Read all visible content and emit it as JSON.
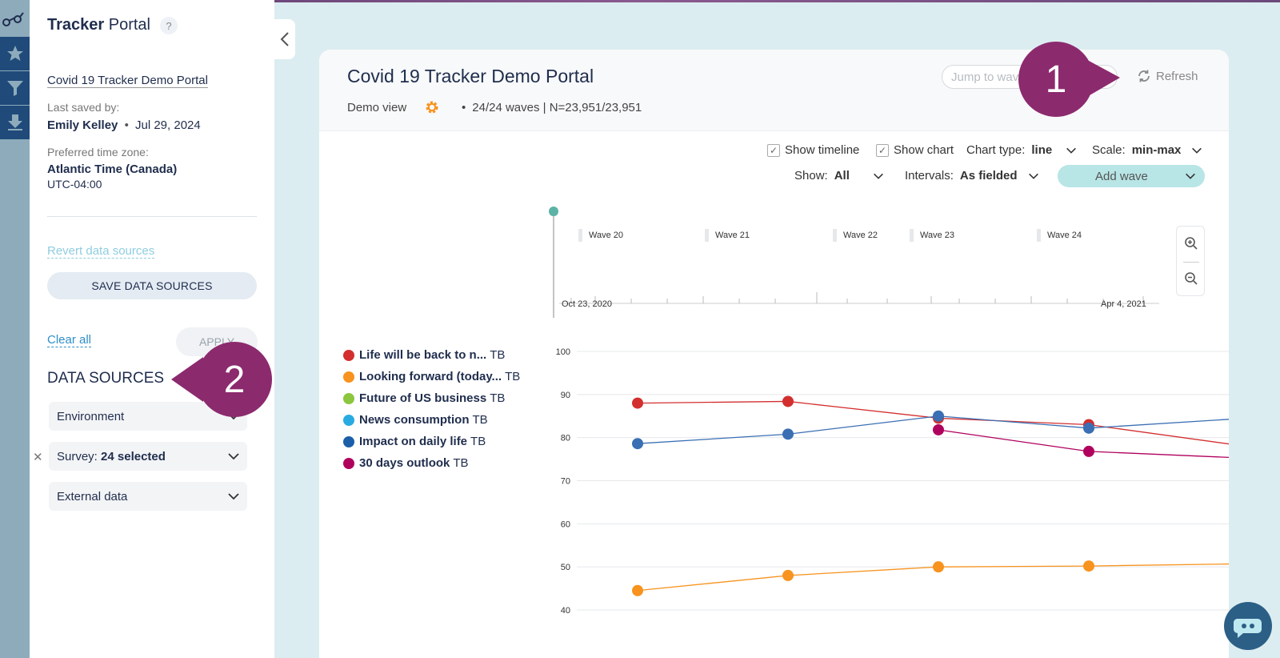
{
  "app": {
    "brand_bold": "Tracker",
    "brand_rest": "Portal",
    "help": "?"
  },
  "sidebar": {
    "portal_link": "Covid 19 Tracker Demo Portal",
    "last_saved_label": "Last saved by:",
    "last_saved_user": "Emily Kelley",
    "last_saved_date": "Jul 29, 2024",
    "tz_label": "Preferred time zone:",
    "tz_name": "Atlantic Time (Canada)",
    "tz_offset": "UTC-04:00",
    "revert": "Revert data sources",
    "save": "SAVE DATA SOURCES",
    "clear": "Clear all",
    "apply": "APPLY",
    "section_title": "DATA SOURCES",
    "dropdowns": [
      {
        "label": "Environment",
        "value": ""
      },
      {
        "label": "Survey: ",
        "value": "24 selected"
      },
      {
        "label": "External data",
        "value": ""
      }
    ]
  },
  "callouts": [
    "1",
    "2"
  ],
  "panel": {
    "title": "Covid 19 Tracker Demo Portal",
    "view": "Demo view",
    "waves": "24/24 waves | N=23,951/23,951",
    "jump_placeholder": "Jump to wave",
    "refresh": "Refresh"
  },
  "controls": {
    "show_timeline": "Show timeline",
    "show_chart": "Show chart",
    "chart_type_label": "Chart type:",
    "chart_type_value": "line",
    "scale_label": "Scale:",
    "scale_value": "min-max",
    "show_label": "Show:",
    "show_value": "All",
    "intervals_label": "Intervals:",
    "intervals_value": "As fielded",
    "add_wave": "Add wave"
  },
  "timeline": {
    "waves": [
      "Wave 20",
      "Wave 21",
      "Wave 22",
      "Wave 23",
      "Wave 24"
    ],
    "start": "Oct 23, 2020",
    "end": "Apr 4, 2021"
  },
  "legend": [
    {
      "bold": "Life will be back to n...",
      "suffix": "TB",
      "color": "#d32f2f"
    },
    {
      "bold": "Looking forward (today...",
      "suffix": "TB",
      "color": "#f7931e"
    },
    {
      "bold": "Future of US business",
      "suffix": "TB",
      "color": "#8cc63f"
    },
    {
      "bold": "News consumption",
      "suffix": "TB",
      "color": "#29abe2"
    },
    {
      "bold": "Impact on daily life",
      "suffix": "TB",
      "color": "#1c5fa8"
    },
    {
      "bold": "30 days outlook",
      "suffix": "TB",
      "color": "#b0005e"
    }
  ],
  "chart_data": {
    "type": "line",
    "x": [
      "Wave 20",
      "Wave 21",
      "Wave 22",
      "Wave 23",
      "Wave 24"
    ],
    "ylim": [
      40,
      100
    ],
    "yticks": [
      100,
      90,
      80,
      70,
      60,
      50,
      40
    ],
    "series": [
      {
        "name": "Life will be back to n... TB",
        "color": "#d32f2f",
        "values": [
          88,
          88.4,
          84.5,
          83,
          78.2
        ]
      },
      {
        "name": "Looking forward (today... TB",
        "color": "#f7931e",
        "values": [
          44.5,
          48,
          50,
          50.2,
          50.7
        ]
      },
      {
        "name": "Impact on daily life TB",
        "color": "#3a6fb4",
        "values": [
          78.6,
          80.8,
          85,
          82.2,
          84.4
        ]
      },
      {
        "name": "30 days outlook TB",
        "color": "#b0005e",
        "values": [
          null,
          null,
          81.8,
          76.8,
          75.3
        ]
      }
    ]
  }
}
